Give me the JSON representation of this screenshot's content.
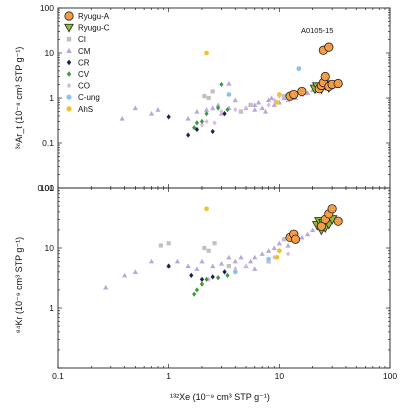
{
  "chart_data": [
    {
      "type": "scatter",
      "panel": "top",
      "xscale": "log",
      "yscale": "log",
      "xlim": [
        0.1,
        100
      ],
      "ylim": [
        0.01,
        100
      ],
      "ylabel": "³⁶Ar_t (10⁻⁸ cm³ STP g⁻¹)",
      "yticks": [
        "0.01",
        "0.1",
        "1",
        "10",
        "100"
      ],
      "annotation": "A0105-15",
      "series": [
        {
          "name": "Ryugu-A",
          "points": [
            [
              12.5,
              1.1
            ],
            [
              13.5,
              1.2
            ],
            [
              16,
              1.4
            ],
            [
              23,
              1.6
            ],
            [
              24,
              1.9
            ],
            [
              25,
              2.2
            ],
            [
              26,
              3.0
            ],
            [
              28,
              1.8
            ],
            [
              30,
              2.0
            ],
            [
              34,
              2.1
            ],
            [
              25,
              11.5
            ],
            [
              28,
              13.5
            ]
          ]
        },
        {
          "name": "Ryugu-C",
          "points": [
            [
              21,
              1.6
            ],
            [
              22,
              1.8
            ],
            [
              24,
              1.6
            ],
            [
              26,
              1.9
            ],
            [
              28,
              1.7
            ],
            [
              30,
              2.0
            ]
          ]
        },
        {
          "name": "CI",
          "points": [
            [
              2.1,
              1.1
            ],
            [
              2.3,
              1.0
            ],
            [
              2.5,
              1.4
            ],
            [
              4.5,
              0.5
            ],
            [
              5.5,
              0.7
            ],
            [
              11,
              1.1
            ]
          ]
        },
        {
          "name": "CM",
          "points": [
            [
              0.38,
              0.35
            ],
            [
              0.5,
              0.6
            ],
            [
              0.7,
              0.45
            ],
            [
              0.8,
              0.55
            ],
            [
              1.5,
              0.35
            ],
            [
              1.8,
              0.5
            ],
            [
              2.2,
              0.55
            ],
            [
              2.5,
              0.6
            ],
            [
              2.8,
              0.7
            ],
            [
              3,
              0.45
            ],
            [
              3.5,
              0.6
            ],
            [
              4,
              0.9
            ],
            [
              4.5,
              0.5
            ],
            [
              5,
              0.6
            ],
            [
              5.5,
              0.7
            ],
            [
              6,
              0.55
            ],
            [
              6.5,
              0.8
            ],
            [
              7,
              0.6
            ],
            [
              7.5,
              0.5
            ],
            [
              8,
              0.9
            ],
            [
              9,
              0.7
            ],
            [
              10,
              0.8
            ],
            [
              11,
              1.0
            ],
            [
              12,
              0.9
            ],
            [
              14,
              1.0
            ],
            [
              16,
              1.2
            ],
            [
              18,
              1.3
            ],
            [
              20,
              1.5
            ],
            [
              22,
              1.7
            ],
            [
              3.5,
              2.1
            ],
            [
              8.5,
              1.0
            ],
            [
              6,
              0.7
            ]
          ]
        },
        {
          "name": "CR",
          "points": [
            [
              1.0,
              0.38
            ],
            [
              1.5,
              0.15
            ],
            [
              1.8,
              0.2
            ],
            [
              2.5,
              0.18
            ],
            [
              3.2,
              0.45
            ]
          ]
        },
        {
          "name": "CV",
          "points": [
            [
              1.7,
              0.22
            ],
            [
              1.8,
              0.28
            ],
            [
              2.0,
              0.3
            ],
            [
              2.2,
              0.45
            ],
            [
              2.8,
              0.6
            ],
            [
              3.0,
              2.0
            ],
            [
              3.4,
              0.55
            ]
          ]
        },
        {
          "name": "CO",
          "points": [
            [
              2.0,
              0.25
            ],
            [
              2.2,
              0.3
            ],
            [
              2.6,
              0.28
            ],
            [
              3.0,
              0.5
            ],
            [
              4,
              0.55
            ],
            [
              5,
              0.6
            ],
            [
              8,
              0.7
            ],
            [
              9,
              0.9
            ],
            [
              10,
              1.1
            ],
            [
              12,
              0.9
            ]
          ]
        },
        {
          "name": "C-ung",
          "points": [
            [
              3.5,
              1.2
            ],
            [
              15,
              4.5
            ]
          ]
        },
        {
          "name": "AhS",
          "points": [
            [
              2.2,
              10.0
            ],
            [
              9.5,
              0.8
            ],
            [
              10,
              1.2
            ]
          ]
        }
      ]
    },
    {
      "type": "scatter",
      "panel": "bottom",
      "xscale": "log",
      "yscale": "log",
      "xlim": [
        0.1,
        100
      ],
      "ylim": [
        0.1,
        100
      ],
      "xlabel": "¹³²Xe (10⁻⁹ cm³ STP g⁻¹)",
      "ylabel": "⁸⁴Kr (10⁻⁹ cm³ STP g⁻¹)",
      "xticks": [
        "0.1",
        "1",
        "10",
        "100"
      ],
      "yticks": [
        "1",
        "10",
        "100"
      ],
      "series": [
        {
          "name": "Ryugu-A",
          "points": [
            [
              12.5,
              15
            ],
            [
              13.5,
              17
            ],
            [
              24,
              23
            ],
            [
              26,
              30
            ],
            [
              28,
              37
            ],
            [
              30,
              45
            ],
            [
              34,
              28
            ],
            [
              14,
              14
            ]
          ]
        },
        {
          "name": "Ryugu-C",
          "points": [
            [
              22,
              24
            ],
            [
              23,
              28
            ],
            [
              24,
              20
            ],
            [
              26,
              22
            ],
            [
              28,
              25
            ],
            [
              30,
              30
            ],
            [
              25,
              26
            ]
          ]
        },
        {
          "name": "CI",
          "points": [
            [
              0.85,
              11
            ],
            [
              1.0,
              12
            ],
            [
              2.1,
              10
            ],
            [
              2.3,
              9
            ],
            [
              2.6,
              12
            ],
            [
              11,
              14
            ],
            [
              3.5,
              5
            ]
          ]
        },
        {
          "name": "CM",
          "points": [
            [
              0.27,
              2.2
            ],
            [
              0.4,
              3.5
            ],
            [
              0.5,
              4
            ],
            [
              0.7,
              6
            ],
            [
              1.0,
              5
            ],
            [
              1.2,
              6
            ],
            [
              1.5,
              5
            ],
            [
              1.8,
              4.5
            ],
            [
              2.0,
              6
            ],
            [
              2.5,
              5
            ],
            [
              3.0,
              5.5
            ],
            [
              3.5,
              7
            ],
            [
              4,
              6
            ],
            [
              4.5,
              7
            ],
            [
              5,
              5
            ],
            [
              5.5,
              6
            ],
            [
              6,
              7
            ],
            [
              7,
              8
            ],
            [
              8,
              9
            ],
            [
              9,
              10
            ],
            [
              10,
              12
            ],
            [
              12,
              11
            ],
            [
              14,
              13
            ],
            [
              16,
              15
            ],
            [
              18,
              17
            ],
            [
              20,
              20
            ],
            [
              6,
              4.5
            ],
            [
              8,
              6
            ]
          ]
        },
        {
          "name": "CR",
          "points": [
            [
              1.0,
              5
            ],
            [
              1.6,
              3.5
            ],
            [
              2.0,
              3.0
            ],
            [
              2.5,
              3.3
            ],
            [
              3.2,
              4
            ]
          ]
        },
        {
          "name": "CV",
          "points": [
            [
              1.7,
              1.7
            ],
            [
              1.8,
              2.0
            ],
            [
              2.0,
              2.5
            ],
            [
              2.2,
              3
            ],
            [
              2.8,
              3.2
            ],
            [
              3.4,
              3.5
            ]
          ]
        },
        {
          "name": "CO",
          "points": [
            [
              2.0,
              2.5
            ],
            [
              2.3,
              3.0
            ],
            [
              2.8,
              3.2
            ],
            [
              3.2,
              4
            ],
            [
              4,
              4.5
            ],
            [
              5,
              5
            ],
            [
              8,
              6
            ],
            [
              9,
              7
            ],
            [
              10,
              9
            ],
            [
              12,
              8
            ]
          ]
        },
        {
          "name": "C-ung",
          "points": [
            [
              4,
              4
            ],
            [
              8,
              6.5
            ]
          ]
        },
        {
          "name": "AhS",
          "points": [
            [
              2.2,
              45
            ],
            [
              9.5,
              7
            ],
            [
              10,
              9
            ]
          ]
        }
      ]
    }
  ],
  "legend": [
    {
      "name": "Ryugu-A",
      "marker": "circle",
      "fill": "#f59c45",
      "stroke": "#222222"
    },
    {
      "name": "Ryugu-C",
      "marker": "triangle-down",
      "fill": "#8cbf3a",
      "stroke": "#222222"
    },
    {
      "name": "CI",
      "marker": "square",
      "fill": "#c0c0c0",
      "stroke": "none"
    },
    {
      "name": "CM",
      "marker": "triangle-up",
      "fill": "#b8a8d8",
      "stroke": "none"
    },
    {
      "name": "CR",
      "marker": "diamond",
      "fill": "#1a2050",
      "stroke": "none"
    },
    {
      "name": "CV",
      "marker": "diamond",
      "fill": "#3d9a3a",
      "stroke": "none"
    },
    {
      "name": "CO",
      "marker": "diamond",
      "fill": "#dcb8e6",
      "stroke": "none"
    },
    {
      "name": "C-ung",
      "marker": "hexagon",
      "fill": "#8ec1ea",
      "stroke": "none"
    },
    {
      "name": "AhS",
      "marker": "hexagon",
      "fill": "#f2c12e",
      "stroke": "none"
    }
  ]
}
